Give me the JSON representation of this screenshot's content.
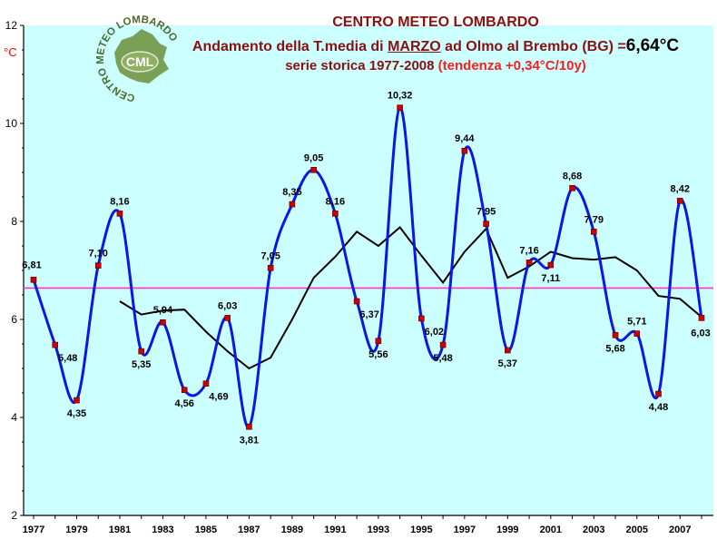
{
  "header": {
    "line1": "CENTRO METEO LOMBARDO",
    "line2_prefix": "Andamento della T.media di ",
    "line2_month": "MARZO",
    "line2_suffix": " ad Olmo al Brembo (BG) =",
    "line2_mean": "6,64°C",
    "line3_prefix": "serie storica 1977-2008 ",
    "line3_trend": "(tendenza +0,34°C/10y)"
  },
  "logo": {
    "ring_text": "CENTRO METEO LOMBARDO",
    "initials": "CML"
  },
  "colors": {
    "plot_bg": "#ccffff",
    "series": "#0a17e6",
    "moving_average": "#000000",
    "mean_line": "#ff33cc",
    "marker": "#cc0000",
    "unit_label": "#ff0000"
  },
  "chart_data": {
    "type": "line",
    "ylabel": "°C",
    "ylim": [
      2,
      12
    ],
    "yticks": [
      "2",
      "4",
      "6",
      "8",
      "10",
      "12"
    ],
    "xlim": [
      1977,
      2008
    ],
    "xticks": [
      "1977",
      "1979",
      "1981",
      "1983",
      "1985",
      "1987",
      "1989",
      "1991",
      "1993",
      "1995",
      "1997",
      "1999",
      "2001",
      "2003",
      "2005",
      "2007"
    ],
    "mean_value": 6.64,
    "x": [
      1977,
      1978,
      1979,
      1980,
      1981,
      1982,
      1983,
      1984,
      1985,
      1986,
      1987,
      1988,
      1989,
      1990,
      1991,
      1992,
      1993,
      1994,
      1995,
      1996,
      1997,
      1998,
      1999,
      2000,
      2001,
      2002,
      2003,
      2004,
      2005,
      2006,
      2007,
      2008
    ],
    "series": [
      {
        "values": [
          6.81,
          5.48,
          4.35,
          7.1,
          8.16,
          5.35,
          5.94,
          4.56,
          4.69,
          6.03,
          3.81,
          7.05,
          8.35,
          9.05,
          8.16,
          6.37,
          5.56,
          10.32,
          6.02,
          5.48,
          9.44,
          7.95,
          5.37,
          7.16,
          7.11,
          8.68,
          7.79,
          5.68,
          5.71,
          4.48,
          8.42,
          6.03
        ],
        "labels": [
          "6,81",
          "5,48",
          "4,35",
          "7,10",
          "8,16",
          "5,35",
          "5,94",
          "4,56",
          "4,69",
          "6,03",
          "3,81",
          "7,05",
          "8,35",
          "9,05",
          "8,16",
          "6,37",
          "5,56",
          "10,32",
          "6,02",
          "5,48",
          "9,44",
          "7,95",
          "5,37",
          "7,16",
          "7,11",
          "8,68",
          "7,79",
          "5,68",
          "5,71",
          "4,48",
          "8,42",
          "6,03"
        ]
      },
      {
        "x": [
          1981,
          1982,
          1983,
          1984,
          1985,
          1986,
          1987,
          1988,
          1989,
          1990,
          1991,
          1992,
          1993,
          1994,
          1995,
          1996,
          1997,
          1998,
          1999,
          2000,
          2001,
          2002,
          2003,
          2004,
          2005,
          2006,
          2007,
          2008
        ],
        "values": [
          6.37,
          6.1,
          6.18,
          6.2,
          5.75,
          5.35,
          5.0,
          5.22,
          6.0,
          6.85,
          7.28,
          7.79,
          7.5,
          7.88,
          7.3,
          6.75,
          7.38,
          7.85,
          6.85,
          7.08,
          7.38,
          7.25,
          7.22,
          7.27,
          7.0,
          6.48,
          6.42,
          6.05
        ]
      }
    ]
  }
}
